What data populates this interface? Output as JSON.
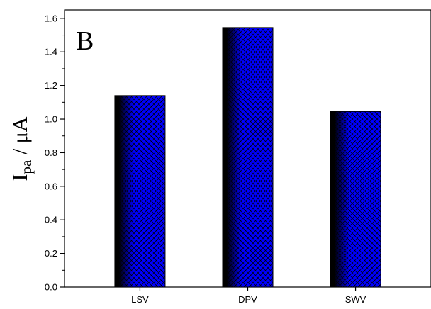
{
  "chart_data": {
    "type": "bar",
    "panel_label": "B",
    "categories": [
      "LSV",
      "DPV",
      "SWV"
    ],
    "values": [
      1.14,
      1.545,
      1.045
    ],
    "ylabel": {
      "main": "I",
      "sub": "pa",
      "rest": " / μA"
    },
    "xlabel": "",
    "ylim": [
      0,
      1.65
    ],
    "yticks": [
      "0.0",
      "0.2",
      "0.4",
      "0.6",
      "0.8",
      "1.0",
      "1.2",
      "1.4",
      "1.6"
    ],
    "grid": false,
    "legend": "none",
    "bar_color": "#0000ff",
    "bar_shade_color": "#000000",
    "hatch_color": "#000000"
  }
}
